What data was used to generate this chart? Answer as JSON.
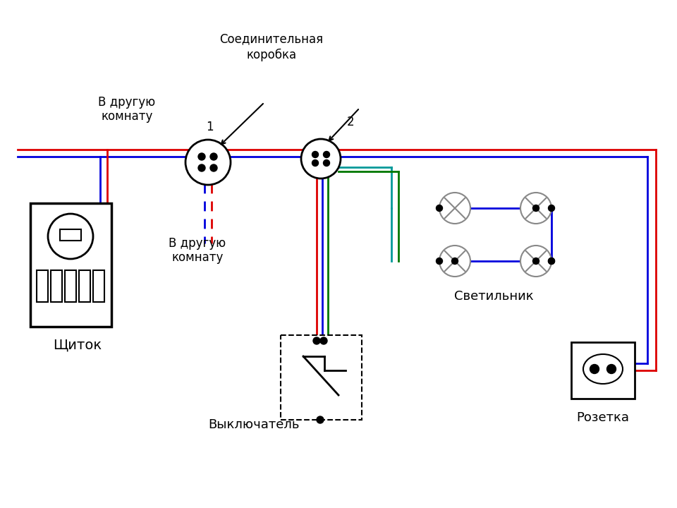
{
  "bg_color": "#ffffff",
  "line_red": "#dd0000",
  "line_blue": "#0000dd",
  "line_green": "#007700",
  "line_teal": "#009999",
  "line_black": "#000000",
  "title_soedinitelnaya": "Соединительная",
  "title_korobka": "коробка",
  "label_v_druguyu1": "В другую\nкомнату",
  "label_v_druguyu2": "В другую\nкомнату",
  "label_schiток": "Щиток",
  "label_svetilnik": "Светильник",
  "label_viklyuchatel": "Выключатель",
  "label_rozetka": "Розетка",
  "label_1": "1",
  "label_2": "2"
}
